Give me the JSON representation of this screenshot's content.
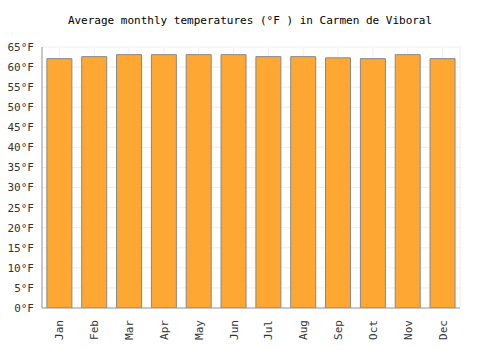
{
  "chart_data": {
    "type": "bar",
    "title": "Average monthly temperatures (°F ) in Carmen de Viboral",
    "categories": [
      "Jan",
      "Feb",
      "Mar",
      "Apr",
      "May",
      "Jun",
      "Jul",
      "Aug",
      "Sep",
      "Oct",
      "Nov",
      "Dec"
    ],
    "values": [
      62.1,
      62.6,
      63.1,
      63.1,
      63.1,
      63.1,
      62.6,
      62.6,
      62.3,
      62.1,
      63.1,
      62.1
    ],
    "color": "#ffa733",
    "ylim": [
      0,
      65
    ],
    "yticks": [
      {
        "value": 0,
        "label": "0°F"
      },
      {
        "value": 5,
        "label": "5°F"
      },
      {
        "value": 10,
        "label": "10°F"
      },
      {
        "value": 15,
        "label": "15°F"
      },
      {
        "value": 20,
        "label": "20°F"
      },
      {
        "value": 25,
        "label": "25°F"
      },
      {
        "value": 30,
        "label": "30°F"
      },
      {
        "value": 35,
        "label": "35°F"
      },
      {
        "value": 40,
        "label": "40°F"
      },
      {
        "value": 45,
        "label": "45°F"
      },
      {
        "value": 50,
        "label": "50°F"
      },
      {
        "value": 55,
        "label": "55°F"
      },
      {
        "value": 60,
        "label": "60°F"
      },
      {
        "value": 65,
        "label": "65°F"
      }
    ],
    "grid": true
  }
}
